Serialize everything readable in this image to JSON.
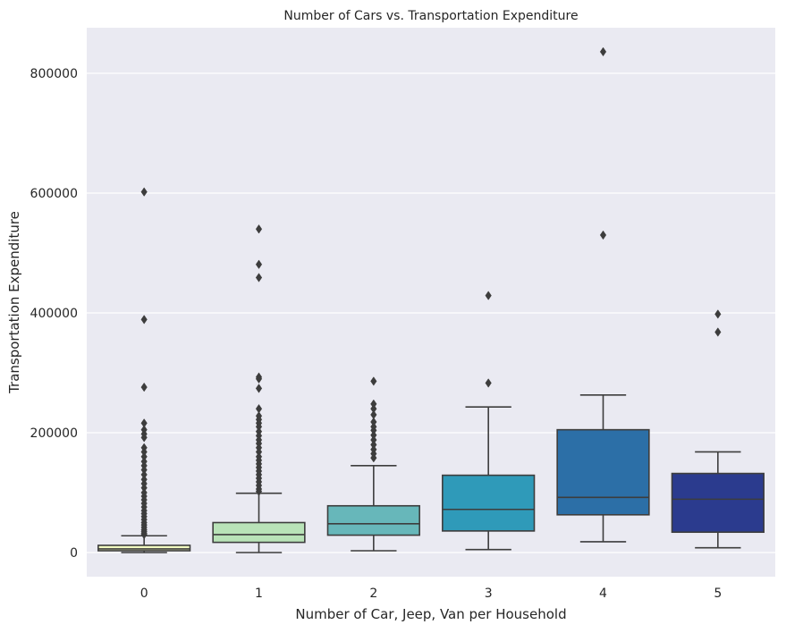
{
  "chart_data": {
    "type": "box",
    "title": "Number of Cars vs. Transportation Expenditure",
    "xlabel": "Number of Car, Jeep, Van per Household",
    "ylabel": "Transportation Expenditure",
    "ylim": [
      -40000,
      875000
    ],
    "yticks": [
      0,
      200000,
      400000,
      600000,
      800000
    ],
    "ytick_labels": [
      "0",
      "200000",
      "400000",
      "600000",
      "800000"
    ],
    "grid": true,
    "legend": "none",
    "categories": [
      "0",
      "1",
      "2",
      "3",
      "4",
      "5"
    ],
    "boxes": [
      {
        "category": "0",
        "color": "#f1f9c0",
        "whisker_low": 0,
        "q1": 3000,
        "median": 6000,
        "q3": 12000,
        "whisker_high": 28000,
        "outliers": [
          602000,
          389000,
          276000,
          216000,
          205000,
          198000,
          192000,
          175000,
          168000,
          160000,
          152000,
          145000,
          138000,
          130000,
          122000,
          115000,
          108000,
          100000,
          94000,
          88000,
          82000,
          76000,
          70000,
          65000,
          60000,
          55000,
          50000,
          46000,
          42000,
          38000,
          35000,
          32000,
          30000
        ]
      },
      {
        "category": "1",
        "color": "#b9e3b8",
        "whisker_low": 0,
        "q1": 17000,
        "median": 30000,
        "q3": 50000,
        "whisker_high": 99000,
        "outliers": [
          540000,
          481000,
          459000,
          293000,
          290000,
          274000,
          240000,
          228000,
          222000,
          216000,
          210000,
          202000,
          195000,
          188000,
          182000,
          175000,
          168000,
          160000,
          154000,
          148000,
          142000,
          136000,
          130000,
          124000,
          118000,
          112000,
          106000,
          102000
        ]
      },
      {
        "category": "2",
        "color": "#67b7ba",
        "whisker_low": 3000,
        "q1": 29000,
        "median": 48000,
        "q3": 78000,
        "whisker_high": 145000,
        "outliers": [
          286000,
          248000,
          240000,
          230000,
          218000,
          210000,
          204000,
          196000,
          188000,
          180000,
          172000,
          165000,
          158000
        ]
      },
      {
        "category": "3",
        "color": "#2f9ab9",
        "whisker_low": 5000,
        "q1": 36000,
        "median": 72000,
        "q3": 129000,
        "whisker_high": 243000,
        "outliers": [
          429000,
          283000
        ]
      },
      {
        "category": "4",
        "color": "#2c6fa7",
        "whisker_low": 18000,
        "q1": 63000,
        "median": 92000,
        "q3": 205000,
        "whisker_high": 263000,
        "outliers": [
          836000,
          530000
        ]
      },
      {
        "category": "5",
        "color": "#2b3b8e",
        "whisker_low": 8000,
        "q1": 34000,
        "median": 89000,
        "q3": 132000,
        "whisker_high": 168000,
        "outliers": [
          398000,
          368000
        ]
      }
    ]
  }
}
